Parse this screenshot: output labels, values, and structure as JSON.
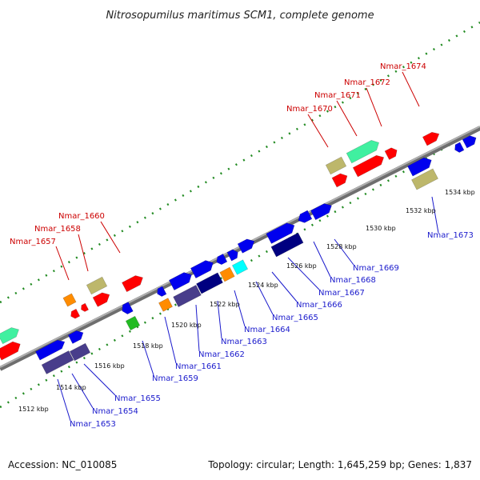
{
  "title": "Nitrosopumilus maritimus SCM1, complete genome",
  "footer": {
    "accession": "Accession: NC_010085",
    "topology": "Topology: circular; Length: 1,645,259 bp; Genes: 1,837"
  },
  "kbp_labels": [
    "1512 kbp",
    "1514 kbp",
    "1516 kbp",
    "1518 kbp",
    "1520 kbp",
    "1522 kbp",
    "1524 kbp",
    "1526 kbp",
    "1528 kbp",
    "1530 kbp",
    "1532 kbp",
    "1534 kbp"
  ],
  "colors": {
    "red": "#ff0000",
    "blue": "#0000ee",
    "navy": "#000080",
    "slate": "#483d8b",
    "khaki": "#bdb76b",
    "orange": "#ff8c00",
    "green": "#22bb22",
    "cyan": "#00ffff",
    "aquamarine": "#40f0a0",
    "backbone": "#888888",
    "tick_green": "#228b22",
    "label_red": "#cc0000",
    "label_blue": "#1a1acc"
  },
  "genes_upper": [
    "Nmar_1657",
    "Nmar_1658",
    "Nmar_1660",
    "Nmar_1670",
    "Nmar_1671",
    "Nmar_1672",
    "Nmar_1674"
  ],
  "genes_lower": [
    "Nmar_1653",
    "Nmar_1654",
    "Nmar_1655",
    "Nmar_1659",
    "Nmar_1661",
    "Nmar_1662",
    "Nmar_1663",
    "Nmar_1664",
    "Nmar_1665",
    "Nmar_1666",
    "Nmar_1667",
    "Nmar_1668",
    "Nmar_1669",
    "Nmar_1673"
  ]
}
